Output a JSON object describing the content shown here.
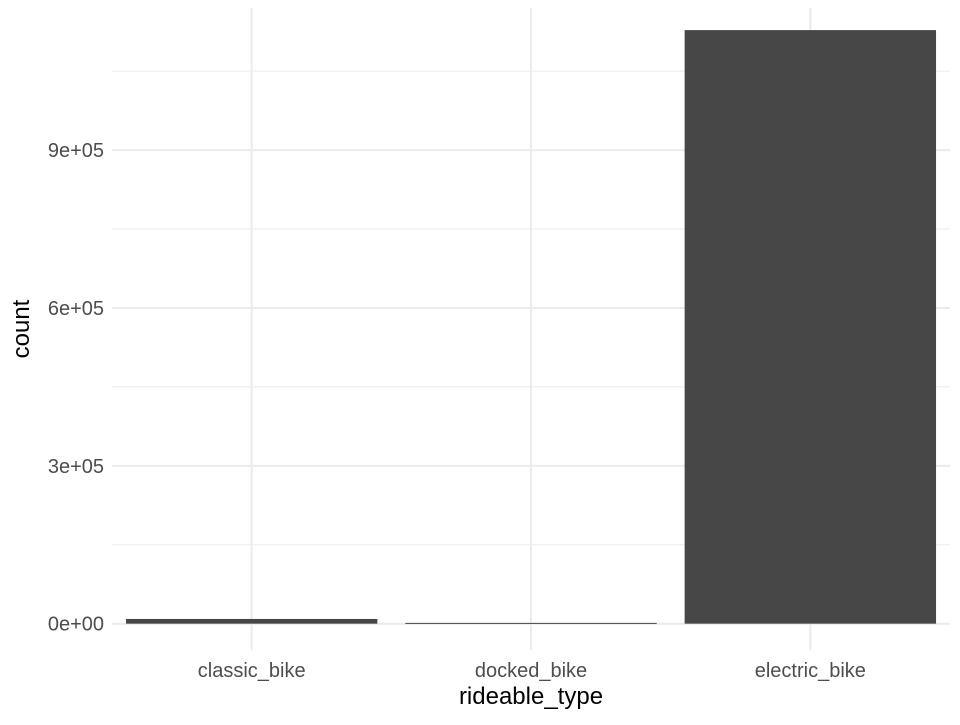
{
  "chart_data": {
    "type": "bar",
    "xlabel": "rideable_type",
    "ylabel": "count",
    "categories": [
      "classic_bike",
      "docked_bike",
      "electric_bike"
    ],
    "values": [
      9000,
      1500,
      1128000
    ],
    "ylim": [
      -50000,
      1170000
    ],
    "y_ticks": [
      0,
      300000,
      600000,
      900000
    ],
    "y_tick_labels": [
      "0e+00",
      "3e+05",
      "6e+05",
      "9e+05"
    ],
    "y_minor_ticks": [
      150000,
      450000,
      750000,
      1050000
    ],
    "grid": true,
    "bar_color": "#474747",
    "grid_color": "#ebebeb",
    "tick_label_color": "#4d4d4d"
  }
}
